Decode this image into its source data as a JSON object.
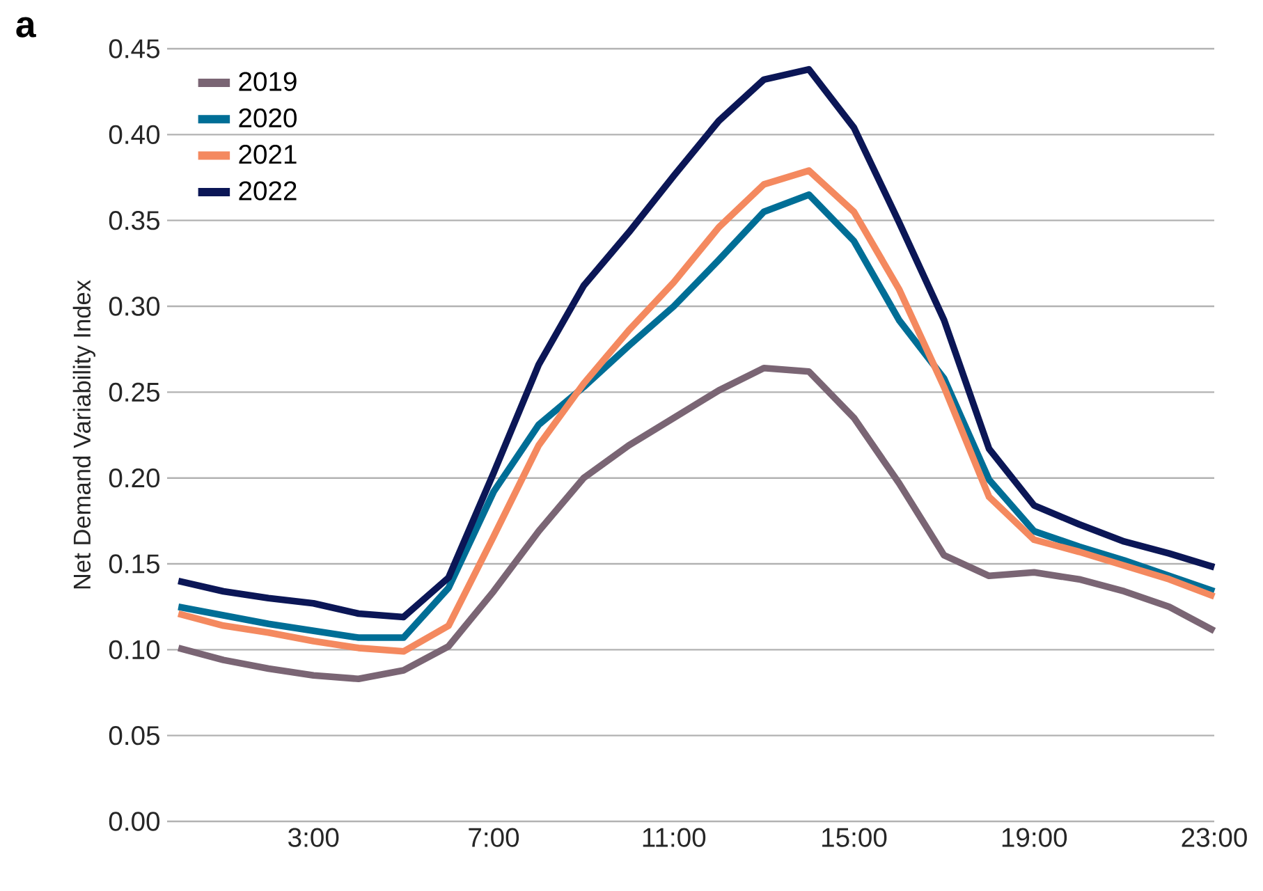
{
  "chart_data": {
    "type": "line",
    "ylabel": "Net Demand Variability Index",
    "annotations": [
      "a"
    ],
    "x": [
      0,
      1,
      2,
      3,
      4,
      5,
      6,
      7,
      8,
      9,
      10,
      11,
      12,
      13,
      14,
      15,
      16,
      17,
      18,
      19,
      20,
      21,
      22,
      23
    ],
    "xlim": [
      -0.25,
      23
    ],
    "xticks": [
      {
        "value": 3,
        "label": "3:00"
      },
      {
        "value": 7,
        "label": "7:00"
      },
      {
        "value": 11,
        "label": "11:00"
      },
      {
        "value": 15,
        "label": "15:00"
      },
      {
        "value": 19,
        "label": "19:00"
      },
      {
        "value": 23,
        "label": "23:00"
      }
    ],
    "ylim": [
      0,
      0.45
    ],
    "yticks": [
      {
        "value": 0,
        "label": "0.00"
      },
      {
        "value": 0.05,
        "label": "0.05"
      },
      {
        "value": 0.1,
        "label": "0.10"
      },
      {
        "value": 0.15,
        "label": "0.15"
      },
      {
        "value": 0.2,
        "label": "0.20"
      },
      {
        "value": 0.25,
        "label": "0.25"
      },
      {
        "value": 0.3,
        "label": "0.30"
      },
      {
        "value": 0.35,
        "label": "0.35"
      },
      {
        "value": 0.4,
        "label": "0.40"
      },
      {
        "value": 0.45,
        "label": "0.45"
      }
    ],
    "grid": "y",
    "legend": "top left",
    "marker": "none",
    "line_style": "solid",
    "series": [
      {
        "name": "2019",
        "color": "#7a6574",
        "values": [
          0.101,
          0.094,
          0.089,
          0.085,
          0.083,
          0.088,
          0.102,
          0.134,
          0.169,
          0.2,
          0.219,
          0.235,
          0.251,
          0.264,
          0.262,
          0.235,
          0.197,
          0.155,
          0.143,
          0.145,
          0.141,
          0.134,
          0.125,
          0.111
        ]
      },
      {
        "name": "2020",
        "color": "#006e96",
        "values": [
          0.125,
          0.12,
          0.115,
          0.111,
          0.107,
          0.107,
          0.136,
          0.192,
          0.231,
          0.253,
          0.277,
          0.3,
          0.327,
          0.355,
          0.365,
          0.338,
          0.292,
          0.258,
          0.199,
          0.169,
          0.16,
          0.152,
          0.143,
          0.134
        ]
      },
      {
        "name": "2021",
        "color": "#f4895f",
        "values": [
          0.121,
          0.114,
          0.11,
          0.105,
          0.101,
          0.099,
          0.114,
          0.166,
          0.219,
          0.255,
          0.286,
          0.314,
          0.346,
          0.371,
          0.379,
          0.355,
          0.31,
          0.253,
          0.189,
          0.164,
          0.157,
          0.149,
          0.141,
          0.131
        ]
      },
      {
        "name": "2022",
        "color": "#0b1656",
        "values": [
          0.14,
          0.134,
          0.13,
          0.127,
          0.121,
          0.119,
          0.142,
          0.203,
          0.266,
          0.312,
          0.343,
          0.376,
          0.408,
          0.432,
          0.438,
          0.404,
          0.349,
          0.292,
          0.217,
          0.184,
          0.173,
          0.163,
          0.156,
          0.148
        ]
      }
    ]
  }
}
